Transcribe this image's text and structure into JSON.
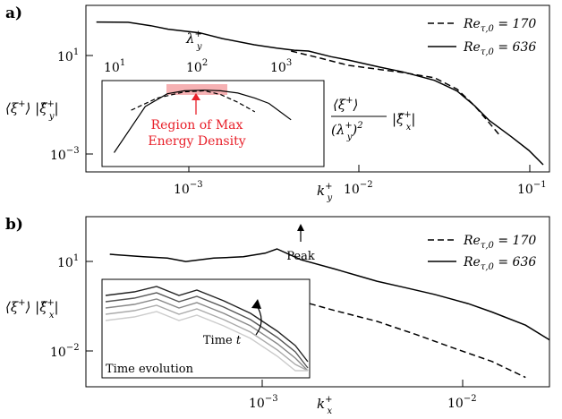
{
  "figure": {
    "panel_a_label": "a)",
    "panel_b_label": "b)"
  },
  "chart_data": [
    {
      "type": "line",
      "panel": "a",
      "xscale": "log",
      "yscale": "log",
      "xlabel": "k_y^+",
      "ylabel": "⟨ξ+⟩ |ξ̂y+|",
      "xlim": [
        0.00035,
        0.13
      ],
      "ylim": [
        0.0001,
        1000
      ],
      "x_ticks": [
        "10^-3",
        "10^-2",
        "10^-1"
      ],
      "y_ticks": [
        "10^1",
        "10^-3"
      ],
      "secondary_x_axis": {
        "label": "λ_y^+",
        "ticks": [
          "10^1",
          "10^2",
          "10^3"
        ]
      },
      "legend": {
        "position": "top-right",
        "entries": [
          "Re_τ,0 = 170",
          "Re_τ,0 = 636"
        ]
      },
      "series": [
        {
          "name": "Re_τ,0 = 170",
          "style": "dashed",
          "x": [
            0.0048,
            0.007,
            0.01,
            0.015,
            0.02,
            0.03,
            0.04,
            0.05,
            0.06,
            0.07
          ],
          "y": [
            12,
            6,
            3,
            2,
            1.5,
            0.9,
            0.3,
            0.06,
            0.012,
            0.003
          ]
        },
        {
          "name": "Re_τ,0 = 636",
          "style": "solid",
          "x": [
            0.0004,
            0.0006,
            0.0008,
            0.001,
            0.0015,
            0.002,
            0.003,
            0.004,
            0.005,
            0.006,
            0.008,
            0.01,
            0.015,
            0.02,
            0.03,
            0.04,
            0.05,
            0.06,
            0.08,
            0.1,
            0.12
          ],
          "y": [
            200,
            195,
            140,
            100,
            70,
            40,
            22,
            16,
            13,
            12,
            7,
            5,
            2.5,
            1.6,
            0.7,
            0.25,
            0.06,
            0.015,
            0.003,
            0.0008,
            0.0002
          ]
        }
      ],
      "inset": {
        "xscale": "log",
        "yscale": "log",
        "ylabel": "⟨ξ+⟩ / (λy+)² |ξ̂x+|",
        "annotation": [
          "Region of Max",
          "Energy Density"
        ],
        "highlight_color": "#f4a3a6",
        "annotation_color": "#e8202a",
        "series": [
          {
            "name": "Re_τ,0 = 170",
            "style": "dashed",
            "x": [
              0.0005,
              0.0007,
              0.001,
              0.0013,
              0.0016,
              0.002,
              0.0025
            ],
            "y": [
              0.3,
              0.5,
              0.65,
              0.68,
              0.58,
              0.42,
              0.28
            ]
          },
          {
            "name": "Re_τ,0 = 636",
            "style": "solid",
            "x": [
              0.0004,
              0.0006,
              0.0008,
              0.001,
              0.0013,
              0.0016,
              0.002,
              0.0025,
              0.003,
              0.004
            ],
            "y": [
              0.05,
              0.35,
              0.6,
              0.68,
              0.7,
              0.68,
              0.62,
              0.5,
              0.4,
              0.2
            ]
          }
        ]
      }
    },
    {
      "type": "line",
      "panel": "b",
      "xscale": "log",
      "yscale": "log",
      "xlabel": "k_x^+",
      "ylabel": "⟨ξ+⟩ |ξ̂x+|",
      "xlim": [
        0.00015,
        0.04
      ],
      "ylim": [
        0.003,
        1000
      ],
      "x_ticks": [
        "10^-3",
        "10^-2"
      ],
      "y_ticks": [
        "10^1",
        "10^-2"
      ],
      "legend": {
        "position": "top-right",
        "entries": [
          "Re_τ,0 = 170",
          "Re_τ,0 = 636"
        ]
      },
      "annotation_peak": "Peak",
      "series": [
        {
          "name": "Re_τ,0 = 170",
          "style": "dashed",
          "x": [
            0.0007,
            0.001,
            0.0015,
            0.002,
            0.003,
            0.005,
            0.008,
            0.012,
            0.02,
            0.03
          ],
          "y": [
            8,
            5,
            3,
            1.8,
            0.9,
            0.4,
            0.15,
            0.06,
            0.02,
            0.006
          ]
        },
        {
          "name": "Re_τ,0 = 636",
          "style": "solid",
          "x": [
            0.0002,
            0.0003,
            0.0004,
            0.0005,
            0.0007,
            0.001,
            0.0013,
            0.0015,
            0.002,
            0.003,
            0.004,
            0.005,
            0.007,
            0.01,
            0.015,
            0.02,
            0.03,
            0.04
          ],
          "y": [
            60,
            50,
            45,
            35,
            45,
            50,
            65,
            90,
            40,
            20,
            12,
            8,
            5,
            3,
            1.5,
            0.8,
            0.3,
            0.1
          ]
        }
      ],
      "inset": {
        "annotation": "Time t",
        "label": "Time evolution",
        "series_colors": [
          "#222222",
          "#555555",
          "#888888",
          "#aaaaaa",
          "#cccccc"
        ]
      }
    }
  ]
}
